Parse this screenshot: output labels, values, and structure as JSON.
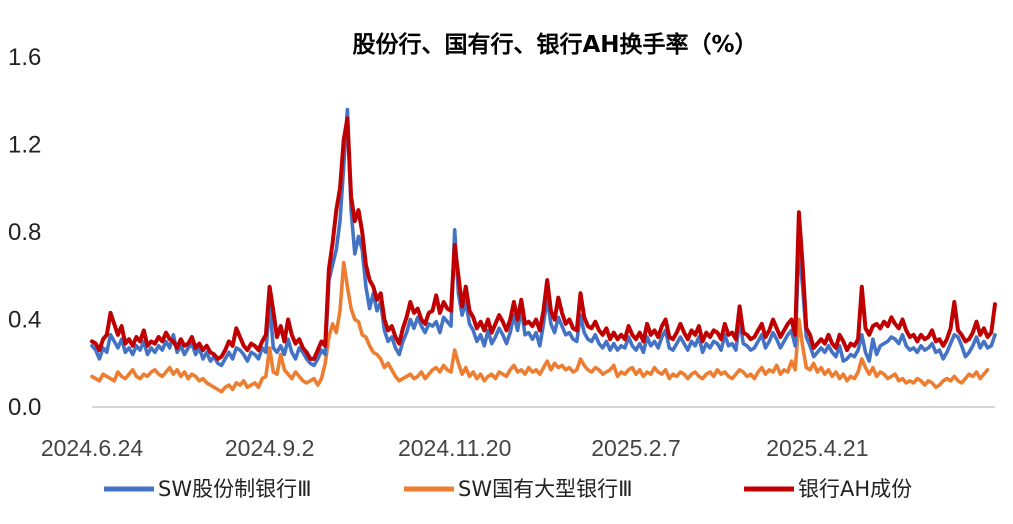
{
  "chart_data": {
    "type": "line",
    "title": "股份行、国有行、银行AH换手率（%）",
    "xlabel": "",
    "ylabel": "",
    "ylim": [
      0.0,
      1.6
    ],
    "yticks": [
      "0.0",
      "0.4",
      "0.8",
      "1.2",
      "1.6"
    ],
    "x_tick_labels": [
      "2024.6.24",
      "2024.9.2",
      "2024.11.20",
      "2025.2.7",
      "2025.4.21"
    ],
    "x_tick_index": [
      0,
      48,
      98,
      147,
      196
    ],
    "grid": false,
    "legend_position": "bottom",
    "series": [
      {
        "name": "SW股份制银行Ⅲ",
        "color": "#4472C4",
        "values": [
          0.28,
          0.26,
          0.22,
          0.27,
          0.25,
          0.33,
          0.3,
          0.27,
          0.31,
          0.25,
          0.27,
          0.24,
          0.28,
          0.26,
          0.3,
          0.24,
          0.27,
          0.25,
          0.28,
          0.26,
          0.3,
          0.27,
          0.33,
          0.25,
          0.28,
          0.24,
          0.27,
          0.29,
          0.24,
          0.27,
          0.22,
          0.25,
          0.21,
          0.23,
          0.2,
          0.19,
          0.22,
          0.25,
          0.22,
          0.27,
          0.26,
          0.24,
          0.21,
          0.25,
          0.24,
          0.22,
          0.27,
          0.25,
          0.48,
          0.27,
          0.25,
          0.28,
          0.24,
          0.31,
          0.25,
          0.22,
          0.27,
          0.25,
          0.22,
          0.2,
          0.19,
          0.22,
          0.26,
          0.24,
          0.58,
          0.65,
          0.72,
          0.85,
          1.1,
          1.36,
          0.9,
          0.7,
          0.78,
          0.72,
          0.55,
          0.45,
          0.52,
          0.44,
          0.48,
          0.35,
          0.3,
          0.32,
          0.27,
          0.24,
          0.3,
          0.34,
          0.4,
          0.36,
          0.41,
          0.37,
          0.34,
          0.38,
          0.37,
          0.39,
          0.34,
          0.41,
          0.39,
          0.37,
          0.81,
          0.52,
          0.42,
          0.48,
          0.38,
          0.35,
          0.3,
          0.33,
          0.28,
          0.35,
          0.29,
          0.32,
          0.36,
          0.33,
          0.29,
          0.34,
          0.42,
          0.35,
          0.45,
          0.33,
          0.34,
          0.31,
          0.34,
          0.28,
          0.38,
          0.5,
          0.38,
          0.34,
          0.41,
          0.37,
          0.33,
          0.34,
          0.31,
          0.3,
          0.42,
          0.34,
          0.31,
          0.3,
          0.33,
          0.29,
          0.27,
          0.3,
          0.26,
          0.29,
          0.26,
          0.28,
          0.27,
          0.32,
          0.28,
          0.26,
          0.29,
          0.25,
          0.32,
          0.28,
          0.3,
          0.27,
          0.32,
          0.35,
          0.27,
          0.26,
          0.29,
          0.32,
          0.29,
          0.26,
          0.3,
          0.28,
          0.32,
          0.25,
          0.29,
          0.27,
          0.3,
          0.29,
          0.26,
          0.33,
          0.28,
          0.29,
          0.26,
          0.4,
          0.29,
          0.28,
          0.26,
          0.27,
          0.3,
          0.33,
          0.27,
          0.3,
          0.34,
          0.31,
          0.27,
          0.3,
          0.33,
          0.35,
          0.28,
          0.74,
          0.55,
          0.32,
          0.28,
          0.23,
          0.25,
          0.27,
          0.25,
          0.28,
          0.25,
          0.23,
          0.28,
          0.21,
          0.22,
          0.24,
          0.23,
          0.26,
          0.33,
          0.25,
          0.21,
          0.31,
          0.24,
          0.28,
          0.29,
          0.3,
          0.32,
          0.31,
          0.29,
          0.33,
          0.28,
          0.26,
          0.27,
          0.25,
          0.28,
          0.26,
          0.27,
          0.29,
          0.25,
          0.26,
          0.22,
          0.25,
          0.29,
          0.33,
          0.32,
          0.28,
          0.23,
          0.25,
          0.28,
          0.32,
          0.27,
          0.3,
          0.27,
          0.28,
          0.33
        ]
      },
      {
        "name": "SW国有大型银行Ⅲ",
        "color": "#ED7D31",
        "values": [
          0.14,
          0.13,
          0.12,
          0.15,
          0.14,
          0.13,
          0.12,
          0.16,
          0.14,
          0.13,
          0.15,
          0.17,
          0.14,
          0.13,
          0.15,
          0.14,
          0.16,
          0.17,
          0.15,
          0.14,
          0.16,
          0.18,
          0.15,
          0.17,
          0.14,
          0.16,
          0.13,
          0.15,
          0.14,
          0.12,
          0.13,
          0.11,
          0.1,
          0.09,
          0.08,
          0.07,
          0.09,
          0.1,
          0.08,
          0.11,
          0.1,
          0.12,
          0.09,
          0.1,
          0.11,
          0.09,
          0.13,
          0.14,
          0.27,
          0.16,
          0.15,
          0.24,
          0.17,
          0.15,
          0.13,
          0.16,
          0.14,
          0.12,
          0.11,
          0.12,
          0.13,
          0.1,
          0.13,
          0.2,
          0.32,
          0.38,
          0.34,
          0.44,
          0.66,
          0.55,
          0.45,
          0.4,
          0.39,
          0.33,
          0.32,
          0.28,
          0.25,
          0.24,
          0.22,
          0.18,
          0.2,
          0.17,
          0.14,
          0.12,
          0.13,
          0.14,
          0.15,
          0.13,
          0.14,
          0.16,
          0.13,
          0.15,
          0.17,
          0.18,
          0.16,
          0.19,
          0.17,
          0.16,
          0.26,
          0.2,
          0.15,
          0.18,
          0.14,
          0.16,
          0.13,
          0.15,
          0.12,
          0.14,
          0.15,
          0.13,
          0.16,
          0.15,
          0.14,
          0.17,
          0.19,
          0.16,
          0.17,
          0.15,
          0.18,
          0.16,
          0.17,
          0.15,
          0.18,
          0.21,
          0.17,
          0.2,
          0.18,
          0.19,
          0.17,
          0.18,
          0.16,
          0.17,
          0.22,
          0.19,
          0.17,
          0.16,
          0.18,
          0.17,
          0.15,
          0.16,
          0.17,
          0.19,
          0.14,
          0.16,
          0.15,
          0.17,
          0.18,
          0.15,
          0.17,
          0.14,
          0.16,
          0.15,
          0.18,
          0.16,
          0.15,
          0.17,
          0.13,
          0.15,
          0.14,
          0.16,
          0.15,
          0.13,
          0.15,
          0.16,
          0.14,
          0.13,
          0.15,
          0.16,
          0.14,
          0.17,
          0.15,
          0.16,
          0.14,
          0.13,
          0.15,
          0.17,
          0.16,
          0.14,
          0.15,
          0.13,
          0.16,
          0.18,
          0.15,
          0.17,
          0.16,
          0.19,
          0.15,
          0.17,
          0.16,
          0.21,
          0.17,
          0.4,
          0.28,
          0.18,
          0.17,
          0.2,
          0.16,
          0.18,
          0.15,
          0.17,
          0.14,
          0.16,
          0.13,
          0.15,
          0.12,
          0.14,
          0.13,
          0.16,
          0.22,
          0.18,
          0.15,
          0.18,
          0.14,
          0.16,
          0.15,
          0.13,
          0.14,
          0.15,
          0.12,
          0.13,
          0.11,
          0.12,
          0.11,
          0.13,
          0.12,
          0.1,
          0.12,
          0.11,
          0.09,
          0.1,
          0.12,
          0.13,
          0.12,
          0.14,
          0.12,
          0.11,
          0.13,
          0.15,
          0.14,
          0.16,
          0.13,
          0.15,
          0.17
        ]
      },
      {
        "name": "银行AH成份",
        "color": "#C00000",
        "values": [
          0.3,
          0.29,
          0.26,
          0.31,
          0.33,
          0.43,
          0.38,
          0.33,
          0.37,
          0.29,
          0.31,
          0.28,
          0.32,
          0.3,
          0.35,
          0.28,
          0.3,
          0.29,
          0.32,
          0.3,
          0.34,
          0.31,
          0.3,
          0.27,
          0.31,
          0.28,
          0.29,
          0.32,
          0.27,
          0.29,
          0.26,
          0.28,
          0.25,
          0.24,
          0.22,
          0.23,
          0.26,
          0.3,
          0.28,
          0.36,
          0.32,
          0.28,
          0.26,
          0.29,
          0.28,
          0.26,
          0.3,
          0.33,
          0.55,
          0.44,
          0.32,
          0.37,
          0.3,
          0.4,
          0.33,
          0.29,
          0.31,
          0.27,
          0.25,
          0.22,
          0.22,
          0.26,
          0.3,
          0.28,
          0.63,
          0.75,
          0.9,
          1.0,
          1.22,
          1.32,
          0.96,
          0.85,
          0.9,
          0.8,
          0.65,
          0.58,
          0.55,
          0.49,
          0.52,
          0.4,
          0.35,
          0.37,
          0.32,
          0.29,
          0.36,
          0.41,
          0.48,
          0.43,
          0.45,
          0.4,
          0.38,
          0.43,
          0.44,
          0.51,
          0.43,
          0.48,
          0.45,
          0.44,
          0.74,
          0.6,
          0.46,
          0.55,
          0.44,
          0.41,
          0.36,
          0.39,
          0.35,
          0.4,
          0.34,
          0.38,
          0.42,
          0.39,
          0.35,
          0.4,
          0.48,
          0.4,
          0.49,
          0.38,
          0.39,
          0.37,
          0.4,
          0.35,
          0.44,
          0.58,
          0.44,
          0.4,
          0.5,
          0.43,
          0.38,
          0.4,
          0.36,
          0.35,
          0.52,
          0.41,
          0.37,
          0.36,
          0.39,
          0.35,
          0.33,
          0.36,
          0.31,
          0.34,
          0.31,
          0.33,
          0.31,
          0.37,
          0.33,
          0.31,
          0.34,
          0.3,
          0.38,
          0.33,
          0.35,
          0.32,
          0.37,
          0.4,
          0.32,
          0.31,
          0.34,
          0.38,
          0.34,
          0.31,
          0.35,
          0.33,
          0.37,
          0.3,
          0.34,
          0.32,
          0.35,
          0.34,
          0.31,
          0.38,
          0.33,
          0.34,
          0.31,
          0.46,
          0.34,
          0.33,
          0.31,
          0.32,
          0.35,
          0.38,
          0.32,
          0.35,
          0.4,
          0.36,
          0.32,
          0.35,
          0.38,
          0.4,
          0.33,
          0.89,
          0.65,
          0.36,
          0.33,
          0.27,
          0.29,
          0.31,
          0.29,
          0.33,
          0.29,
          0.27,
          0.33,
          0.3,
          0.26,
          0.29,
          0.28,
          0.31,
          0.55,
          0.36,
          0.33,
          0.37,
          0.38,
          0.36,
          0.39,
          0.37,
          0.41,
          0.38,
          0.36,
          0.4,
          0.35,
          0.32,
          0.33,
          0.3,
          0.33,
          0.31,
          0.32,
          0.35,
          0.3,
          0.31,
          0.28,
          0.31,
          0.36,
          0.48,
          0.35,
          0.33,
          0.3,
          0.31,
          0.34,
          0.39,
          0.33,
          0.36,
          0.32,
          0.34,
          0.47
        ]
      }
    ]
  }
}
